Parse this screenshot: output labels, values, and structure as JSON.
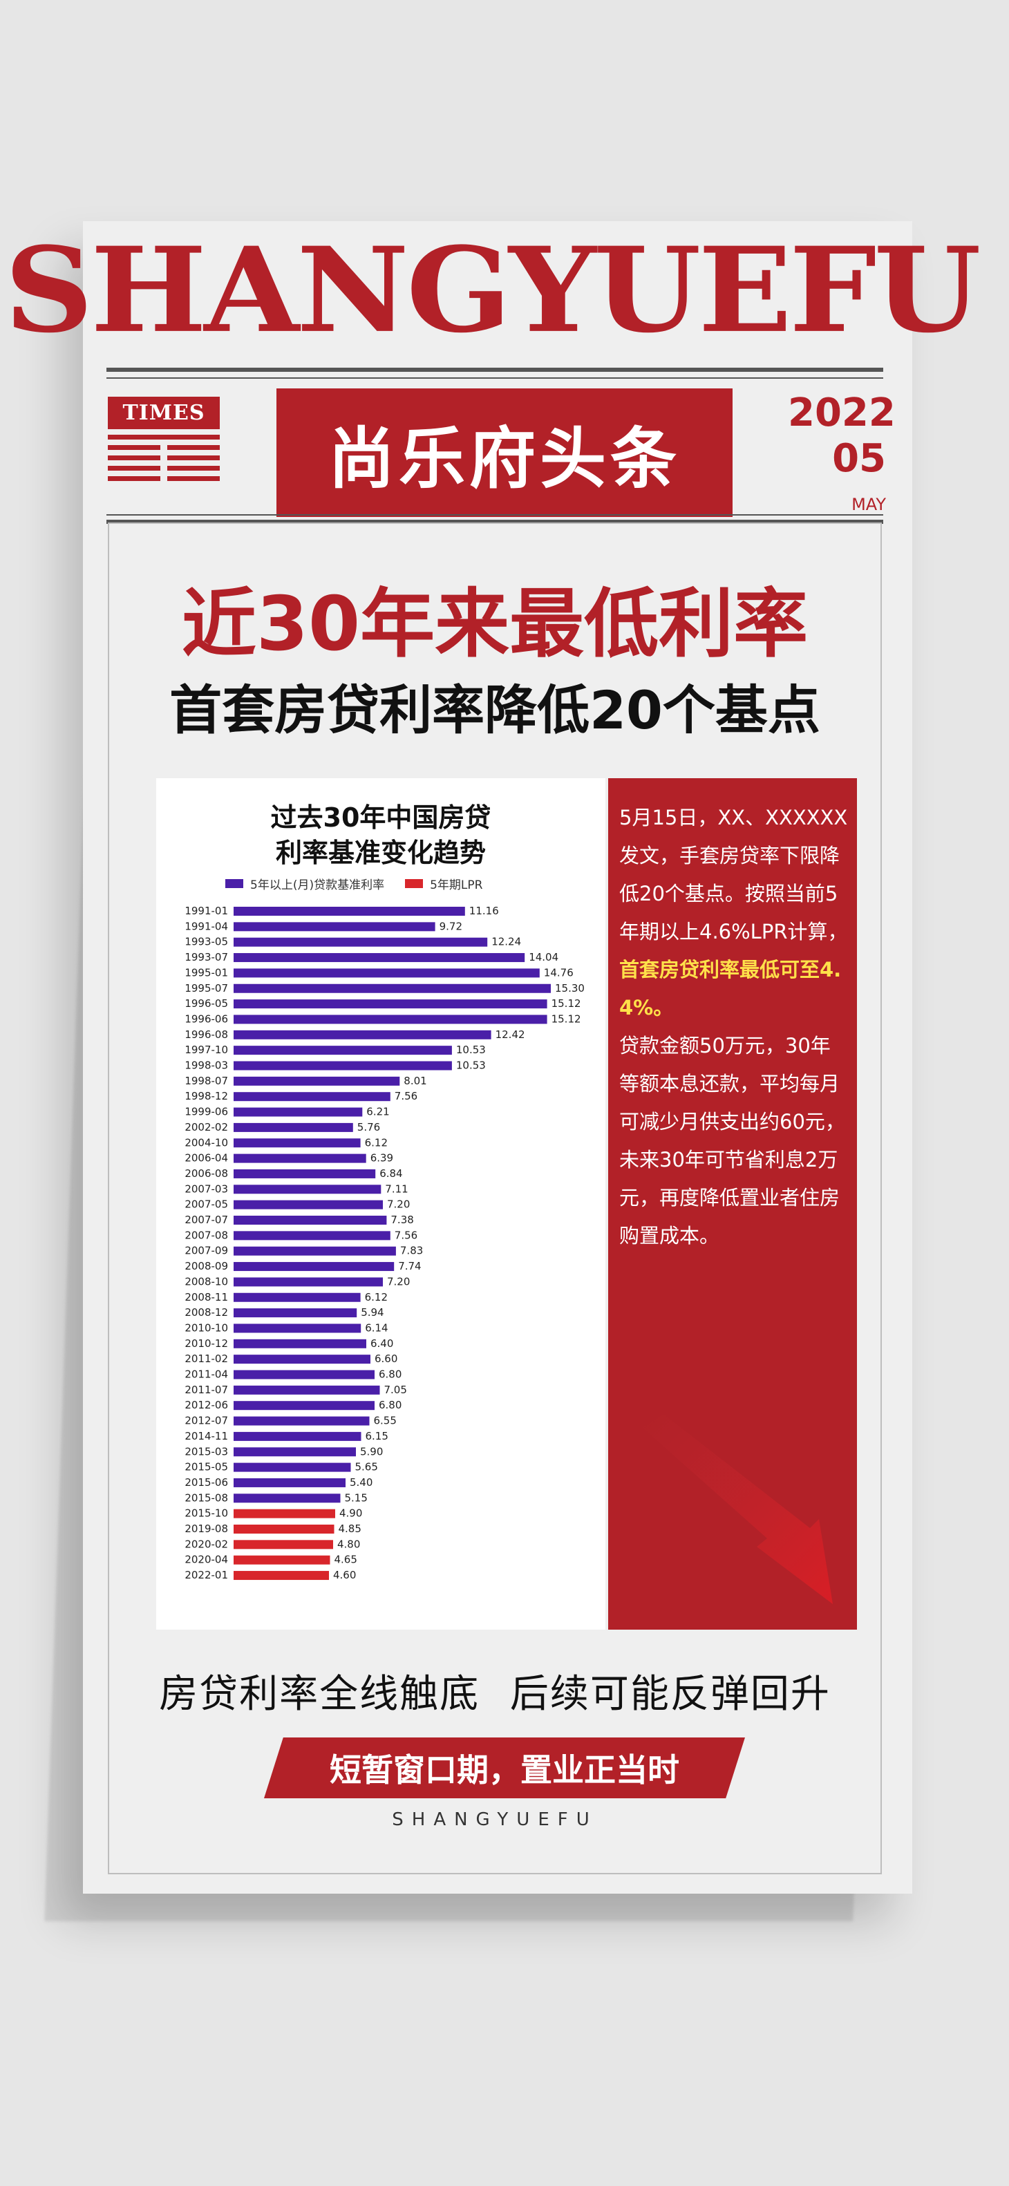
{
  "masthead": {
    "brand": "SHANGYUEFU",
    "times_label": "TIMES",
    "banner": "尚乐府头条",
    "year": "2022",
    "month": "05",
    "month_label": "MAY"
  },
  "headline": {
    "main": "近30年来最低利率",
    "sub": "首套房贷利率降低20个基点"
  },
  "chart_data": {
    "type": "bar",
    "orientation": "horizontal",
    "title": "过去30年中国房贷利率基准变化趋势",
    "title_lines": [
      "过去30年中国房贷",
      "利率基准变化趋势"
    ],
    "legend": [
      "5年以上(月)贷款基准利率",
      "5年期LPR"
    ],
    "legend_placement": "top",
    "colors": {
      "base": "#4a1fa8",
      "lpr": "#d8262b"
    },
    "categories": [
      "1991-01",
      "1991-04",
      "1993-05",
      "1993-07",
      "1995-01",
      "1995-07",
      "1996-05",
      "1996-06",
      "1996-08",
      "1997-10",
      "1998-03",
      "1998-07",
      "1998-12",
      "1999-06",
      "2002-02",
      "2004-10",
      "2006-04",
      "2006-08",
      "2007-03",
      "2007-05",
      "2007-07",
      "2007-08",
      "2007-09",
      "2008-09",
      "2008-10",
      "2008-11",
      "2008-12",
      "2010-10",
      "2010-12",
      "2011-02",
      "2011-04",
      "2011-07",
      "2012-06",
      "2012-07",
      "2014-11",
      "2015-03",
      "2015-05",
      "2015-06",
      "2015-08",
      "2015-10",
      "2019-08",
      "2020-02",
      "2020-04",
      "2022-01"
    ],
    "values": [
      11.16,
      9.72,
      12.24,
      14.04,
      14.76,
      15.3,
      15.12,
      15.12,
      12.42,
      10.53,
      10.53,
      8.01,
      7.56,
      6.21,
      5.76,
      6.12,
      6.39,
      6.84,
      7.11,
      7.2,
      7.38,
      7.56,
      7.83,
      7.74,
      7.2,
      6.12,
      5.94,
      6.14,
      6.4,
      6.6,
      6.8,
      7.05,
      6.8,
      6.55,
      6.15,
      5.9,
      5.65,
      5.4,
      5.15,
      4.9,
      4.85,
      4.8,
      4.65,
      4.6
    ],
    "value_labels": [
      "11.16",
      "9.72",
      "12.24",
      "14.04",
      "14.76",
      "15.30",
      "15.12",
      "15.12",
      "12.42",
      "10.53",
      "10.53",
      "8.01",
      "7.56",
      "6.21",
      "5.76",
      "6.12",
      "6.39",
      "6.84",
      "7.11",
      "7.20",
      "7.38",
      "7.56",
      "7.83",
      "7.74",
      "7.20",
      "6.12",
      "5.94",
      "6.14",
      "6.40",
      "6.60",
      "6.80",
      "7.05",
      "6.80",
      "6.55",
      "6.15",
      "5.90",
      "5.65",
      "5.40",
      "5.15",
      "4.90",
      "4.85",
      "4.80",
      "4.65",
      "4.60"
    ],
    "series_index": [
      0,
      0,
      0,
      0,
      0,
      0,
      0,
      0,
      0,
      0,
      0,
      0,
      0,
      0,
      0,
      0,
      0,
      0,
      0,
      0,
      0,
      0,
      0,
      0,
      0,
      0,
      0,
      0,
      0,
      0,
      0,
      0,
      0,
      0,
      0,
      0,
      0,
      0,
      0,
      1,
      1,
      1,
      1,
      1
    ],
    "xlim": [
      0,
      16
    ],
    "grid": false
  },
  "article": {
    "p1": "5月15日，XX、XXXXXX发文，手套房贷率下限降低20个基点。按照当前5年期以上4.6%LPR计算，",
    "highlight": "首套房贷利率最低可至4.4%。",
    "p2": "贷款金额50万元，30年等额本息还款，平均每月可减少月供支出约60元，未来30年可节省利息2万元，再度降低置业者住房购置成本。"
  },
  "footer": {
    "tagline": "房贷利率全线触底 后续可能反弹回升",
    "cta": "短暂窗口期，置业正当时",
    "brand": "SHANGYUEFU"
  }
}
